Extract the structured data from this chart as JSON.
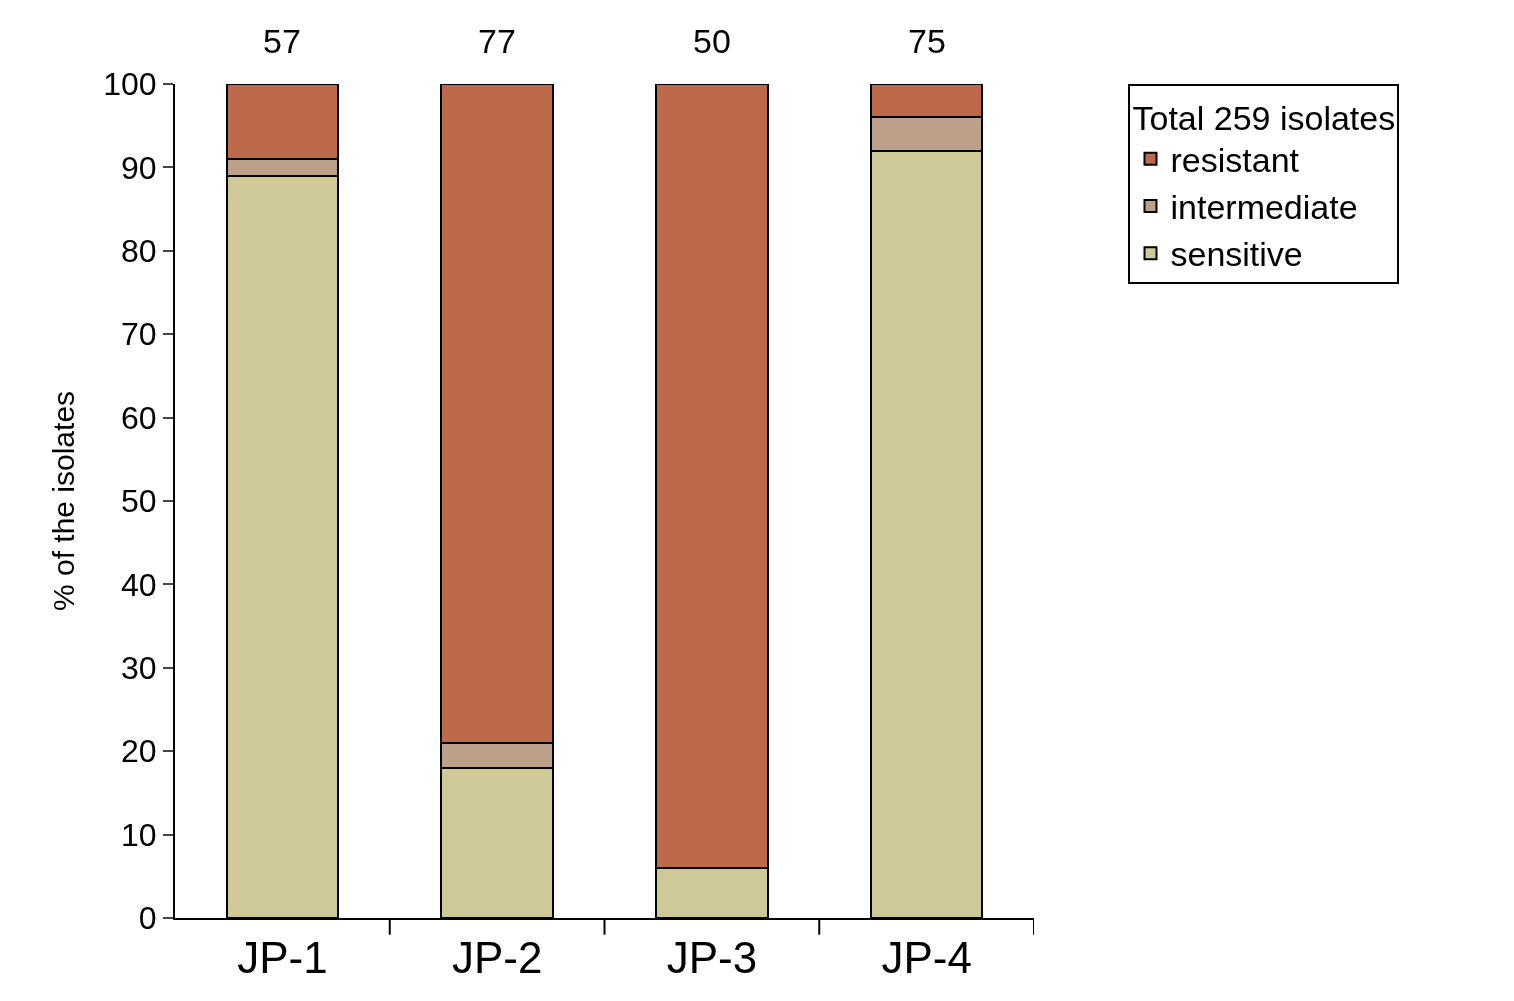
{
  "chart_data": {
    "type": "bar",
    "stacked": true,
    "ylabel": "% of the isolates",
    "legend_title": "Total 259 isolates",
    "categories": [
      "JP-1",
      "JP-2",
      "JP-3",
      "JP-4"
    ],
    "series": [
      {
        "name": "sensitive",
        "color": "#cfc998",
        "values": [
          89,
          18,
          6,
          92
        ]
      },
      {
        "name": "intermediate",
        "color": "#bda08a",
        "values": [
          2,
          3,
          0,
          4
        ]
      },
      {
        "name": "resistant",
        "color": "#bd6a4b",
        "values": [
          9,
          79,
          94,
          4
        ]
      }
    ],
    "annotations": [
      {
        "text": "57",
        "x": "JP-1",
        "y": 100
      },
      {
        "text": "77",
        "x": "JP-2",
        "y": 100
      },
      {
        "text": "50",
        "x": "JP-3",
        "y": 100
      },
      {
        "text": "75",
        "x": "JP-4",
        "y": 100
      }
    ],
    "ylim": [
      0,
      100
    ],
    "yticks": [
      0,
      10,
      20,
      30,
      40,
      50,
      60,
      70,
      80,
      90,
      100
    ],
    "legend": "top right"
  }
}
